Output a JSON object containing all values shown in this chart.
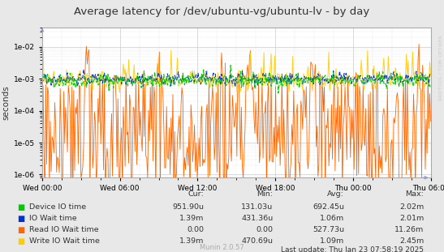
{
  "title": "Average latency for /dev/ubuntu-vg/ubuntu-lv - by day",
  "ylabel": "seconds",
  "bg_color": "#e8e8e8",
  "plot_bg_color": "#ffffff",
  "grid_major_color": "#cccccc",
  "grid_minor_color": "#dddddd",
  "ylim_min": 8e-07,
  "ylim_max": 0.04,
  "x_ticks_labels": [
    "Wed 00:00",
    "Wed 06:00",
    "Wed 12:00",
    "Wed 18:00",
    "Thu 00:00",
    "Thu 06:00"
  ],
  "y_ticks": [
    1e-06,
    1e-05,
    0.0001,
    0.001,
    0.01
  ],
  "right_label": "RRDTOOL / TOBI OETIKER",
  "legend_entries": [
    {
      "label": "Device IO time",
      "color": "#00cc00"
    },
    {
      "label": "IO Wait time",
      "color": "#0033cc"
    },
    {
      "label": "Read IO Wait time",
      "color": "#ff6600"
    },
    {
      "label": "Write IO Wait time",
      "color": "#ffcc00"
    }
  ],
  "stats_header": [
    "Cur:",
    "Min:",
    "Avg:",
    "Max:"
  ],
  "stats": [
    [
      "951.90u",
      "131.03u",
      "692.45u",
      "2.02m"
    ],
    [
      "1.39m",
      "431.36u",
      "1.06m",
      "2.01m"
    ],
    [
      "0.00",
      "0.00",
      "527.73u",
      "11.26m"
    ],
    [
      "1.39m",
      "470.69u",
      "1.09m",
      "2.45m"
    ]
  ],
  "last_update": "Last update: Thu Jan 23 07:58:19 2025",
  "munin_version": "Munin 2.0.57",
  "line_colors": {
    "device_io": "#00cc00",
    "io_wait": "#0033cc",
    "read_io": "#ff6600",
    "write_io": "#ffcc00"
  }
}
